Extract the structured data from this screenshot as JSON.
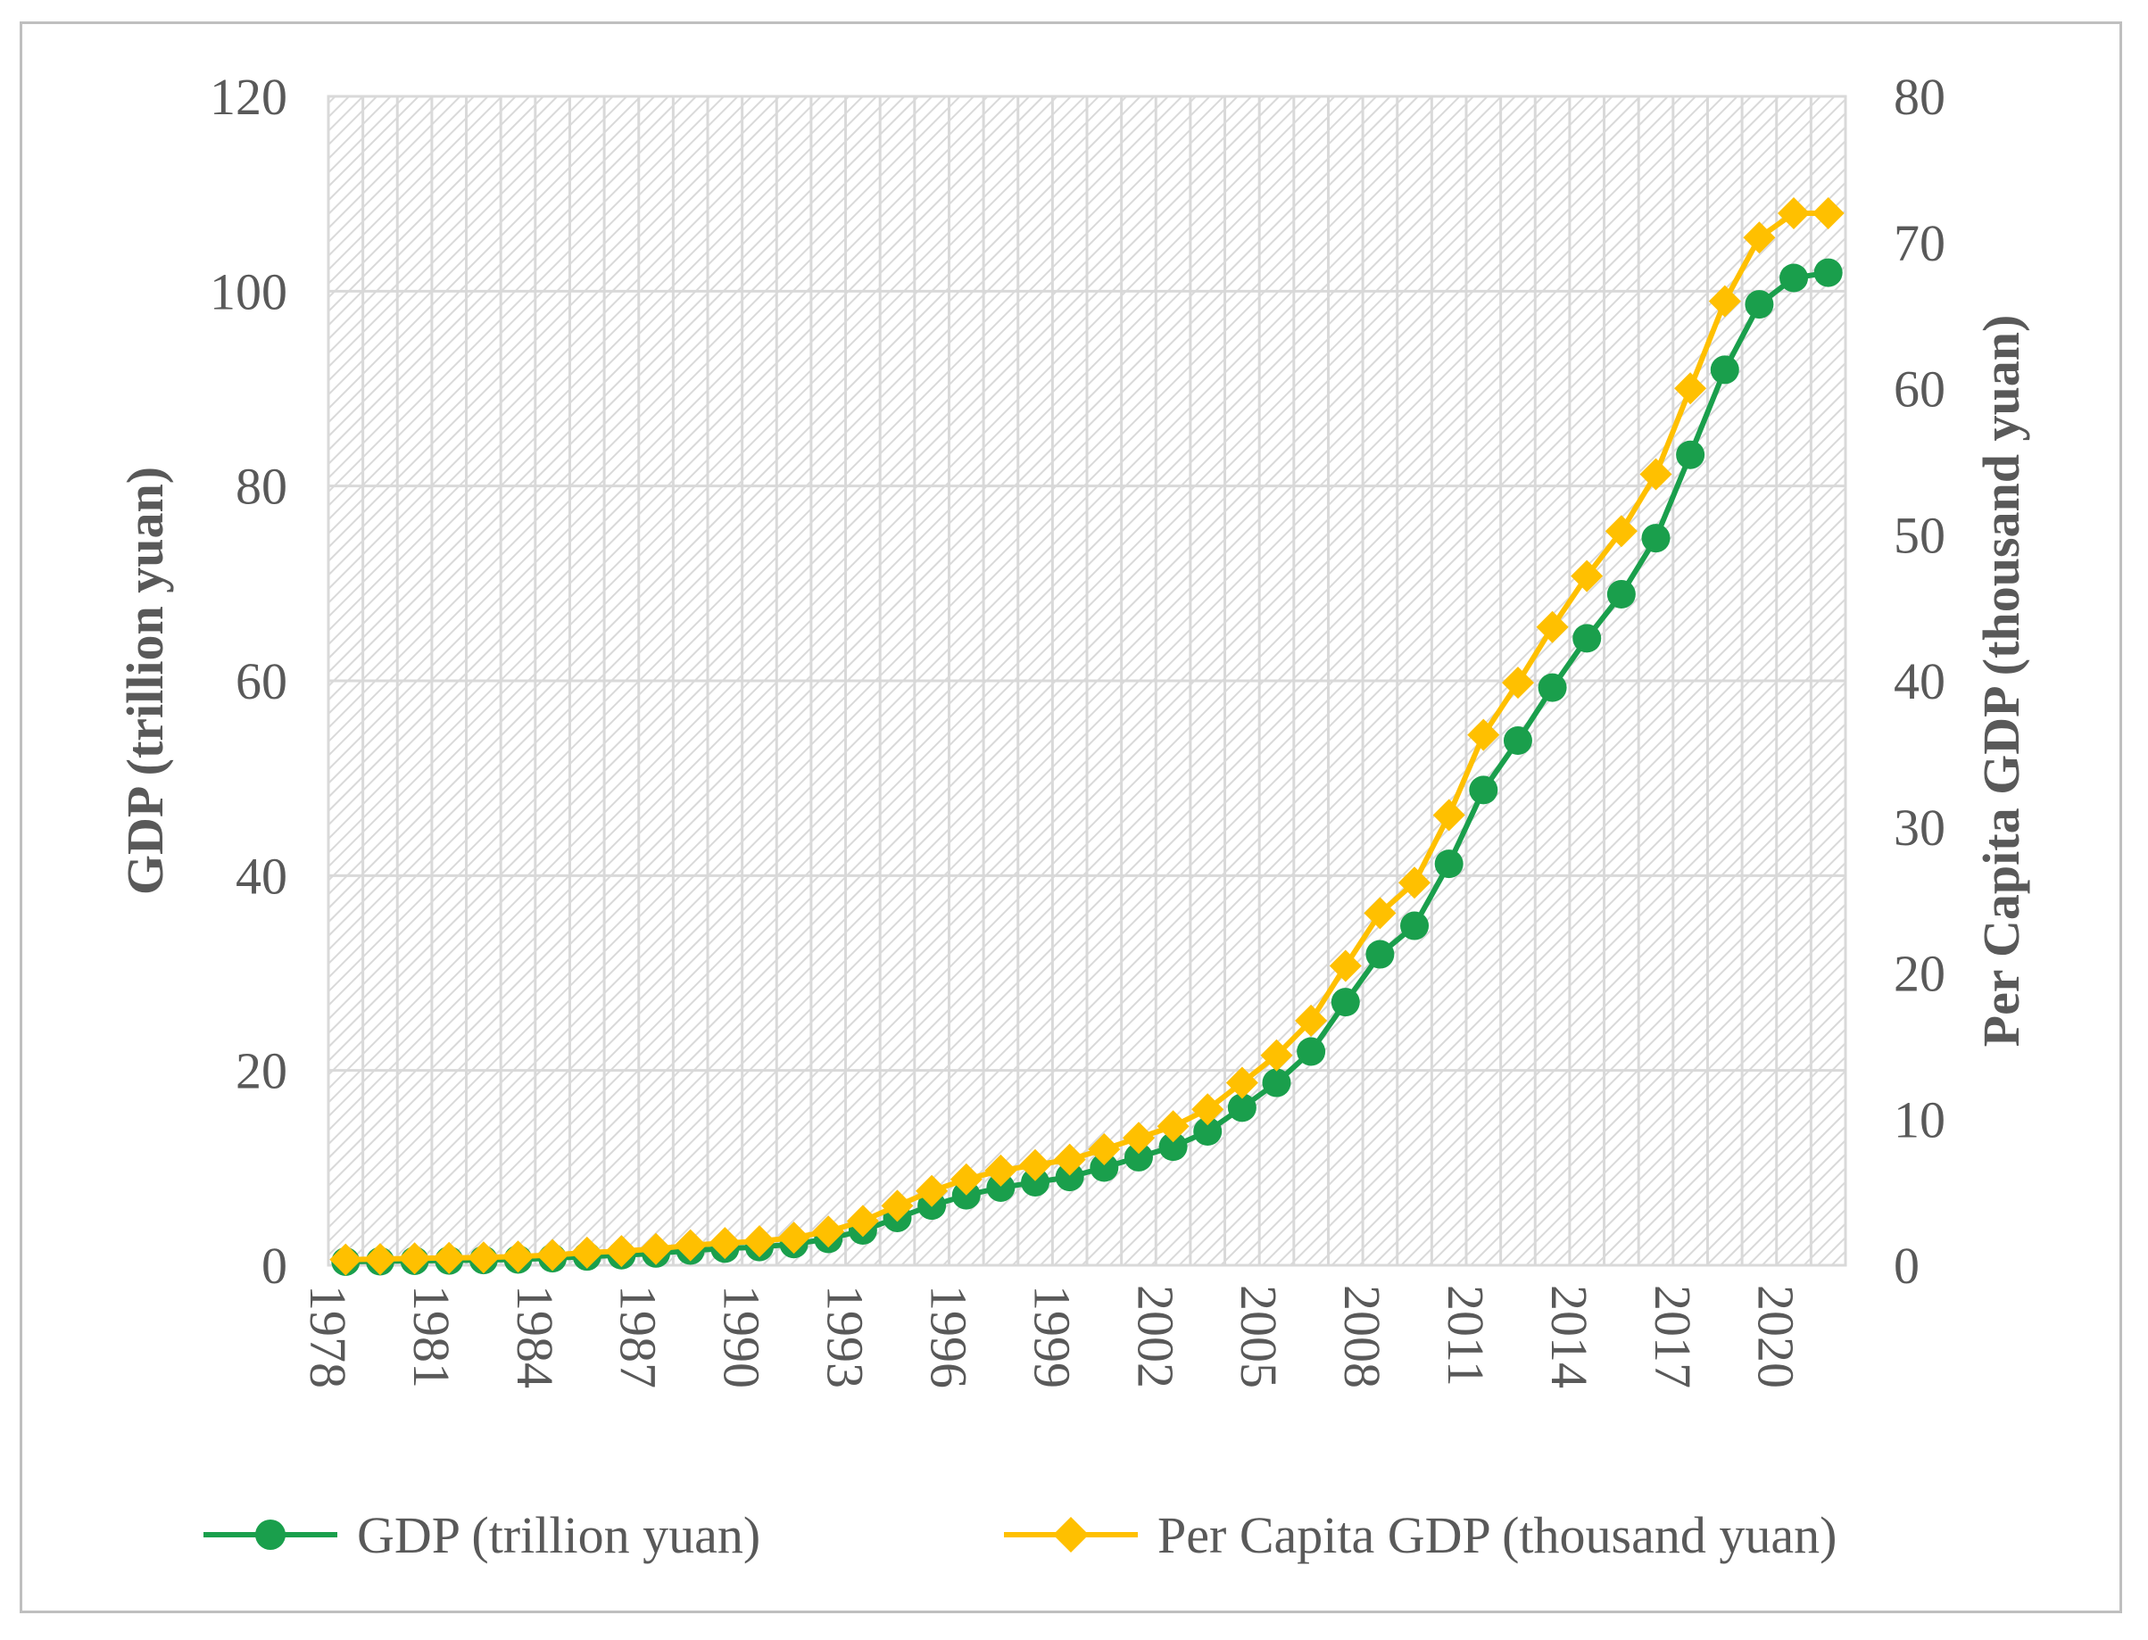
{
  "chart_data": {
    "type": "line",
    "title": "",
    "xlabel": "",
    "ylabel": "GDP (trillion yuan)",
    "y2label": "Per Capita GDP (thousand yuan)",
    "ylim": [
      0,
      120
    ],
    "y2lim": [
      0,
      80
    ],
    "yticks": [
      "0",
      "20",
      "40",
      "60",
      "80",
      "100",
      "120"
    ],
    "y2ticks": [
      "0",
      "10",
      "20",
      "30",
      "40",
      "50",
      "60",
      "70",
      "80"
    ],
    "xtick_labels": [
      "1978",
      "1981",
      "1984",
      "1987",
      "1990",
      "1993",
      "1996",
      "1999",
      "2002",
      "2005",
      "2008",
      "2011",
      "2014",
      "2017",
      "2020"
    ],
    "x": [
      1978,
      1979,
      1980,
      1981,
      1982,
      1983,
      1984,
      1985,
      1986,
      1987,
      1988,
      1989,
      1990,
      1991,
      1992,
      1993,
      1994,
      1995,
      1996,
      1997,
      1998,
      1999,
      2000,
      2001,
      2002,
      2003,
      2004,
      2005,
      2006,
      2007,
      2008,
      2009,
      2010,
      2011,
      2012,
      2013,
      2014,
      2015,
      2016,
      2017,
      2018,
      2019,
      2020,
      2021
    ],
    "series": [
      {
        "name": "GDP (trillion yuan)",
        "axis": "left",
        "color": "#1a9f4c",
        "marker": "circle",
        "values": [
          0.37,
          0.41,
          0.46,
          0.49,
          0.54,
          0.6,
          0.72,
          0.9,
          1.03,
          1.21,
          1.51,
          1.71,
          1.87,
          2.18,
          2.7,
          3.57,
          4.86,
          6.13,
          7.18,
          7.97,
          8.52,
          9.06,
          10.03,
          11.09,
          12.17,
          13.74,
          16.18,
          18.73,
          21.94,
          27.01,
          31.92,
          34.85,
          41.21,
          48.79,
          53.86,
          59.3,
          64.36,
          68.89,
          74.64,
          83.2,
          91.93,
          98.65,
          101.36,
          101.9
        ]
      },
      {
        "name": "Per Capita GDP (thousand yuan)",
        "axis": "right",
        "color": "#ffc000",
        "marker": "diamond",
        "values": [
          0.39,
          0.42,
          0.47,
          0.5,
          0.53,
          0.59,
          0.7,
          0.86,
          0.97,
          1.12,
          1.37,
          1.52,
          1.64,
          1.89,
          2.31,
          3.03,
          4.07,
          5.09,
          5.88,
          6.48,
          6.86,
          7.23,
          7.94,
          8.72,
          9.51,
          10.67,
          12.49,
          14.37,
          16.74,
          20.49,
          24.1,
          26.18,
          30.81,
          36.3,
          39.87,
          43.68,
          47.17,
          50.24,
          54.14,
          60.01,
          65.98,
          70.33,
          72.0,
          72.0
        ]
      }
    ],
    "legend": "bottom",
    "grid": true
  }
}
